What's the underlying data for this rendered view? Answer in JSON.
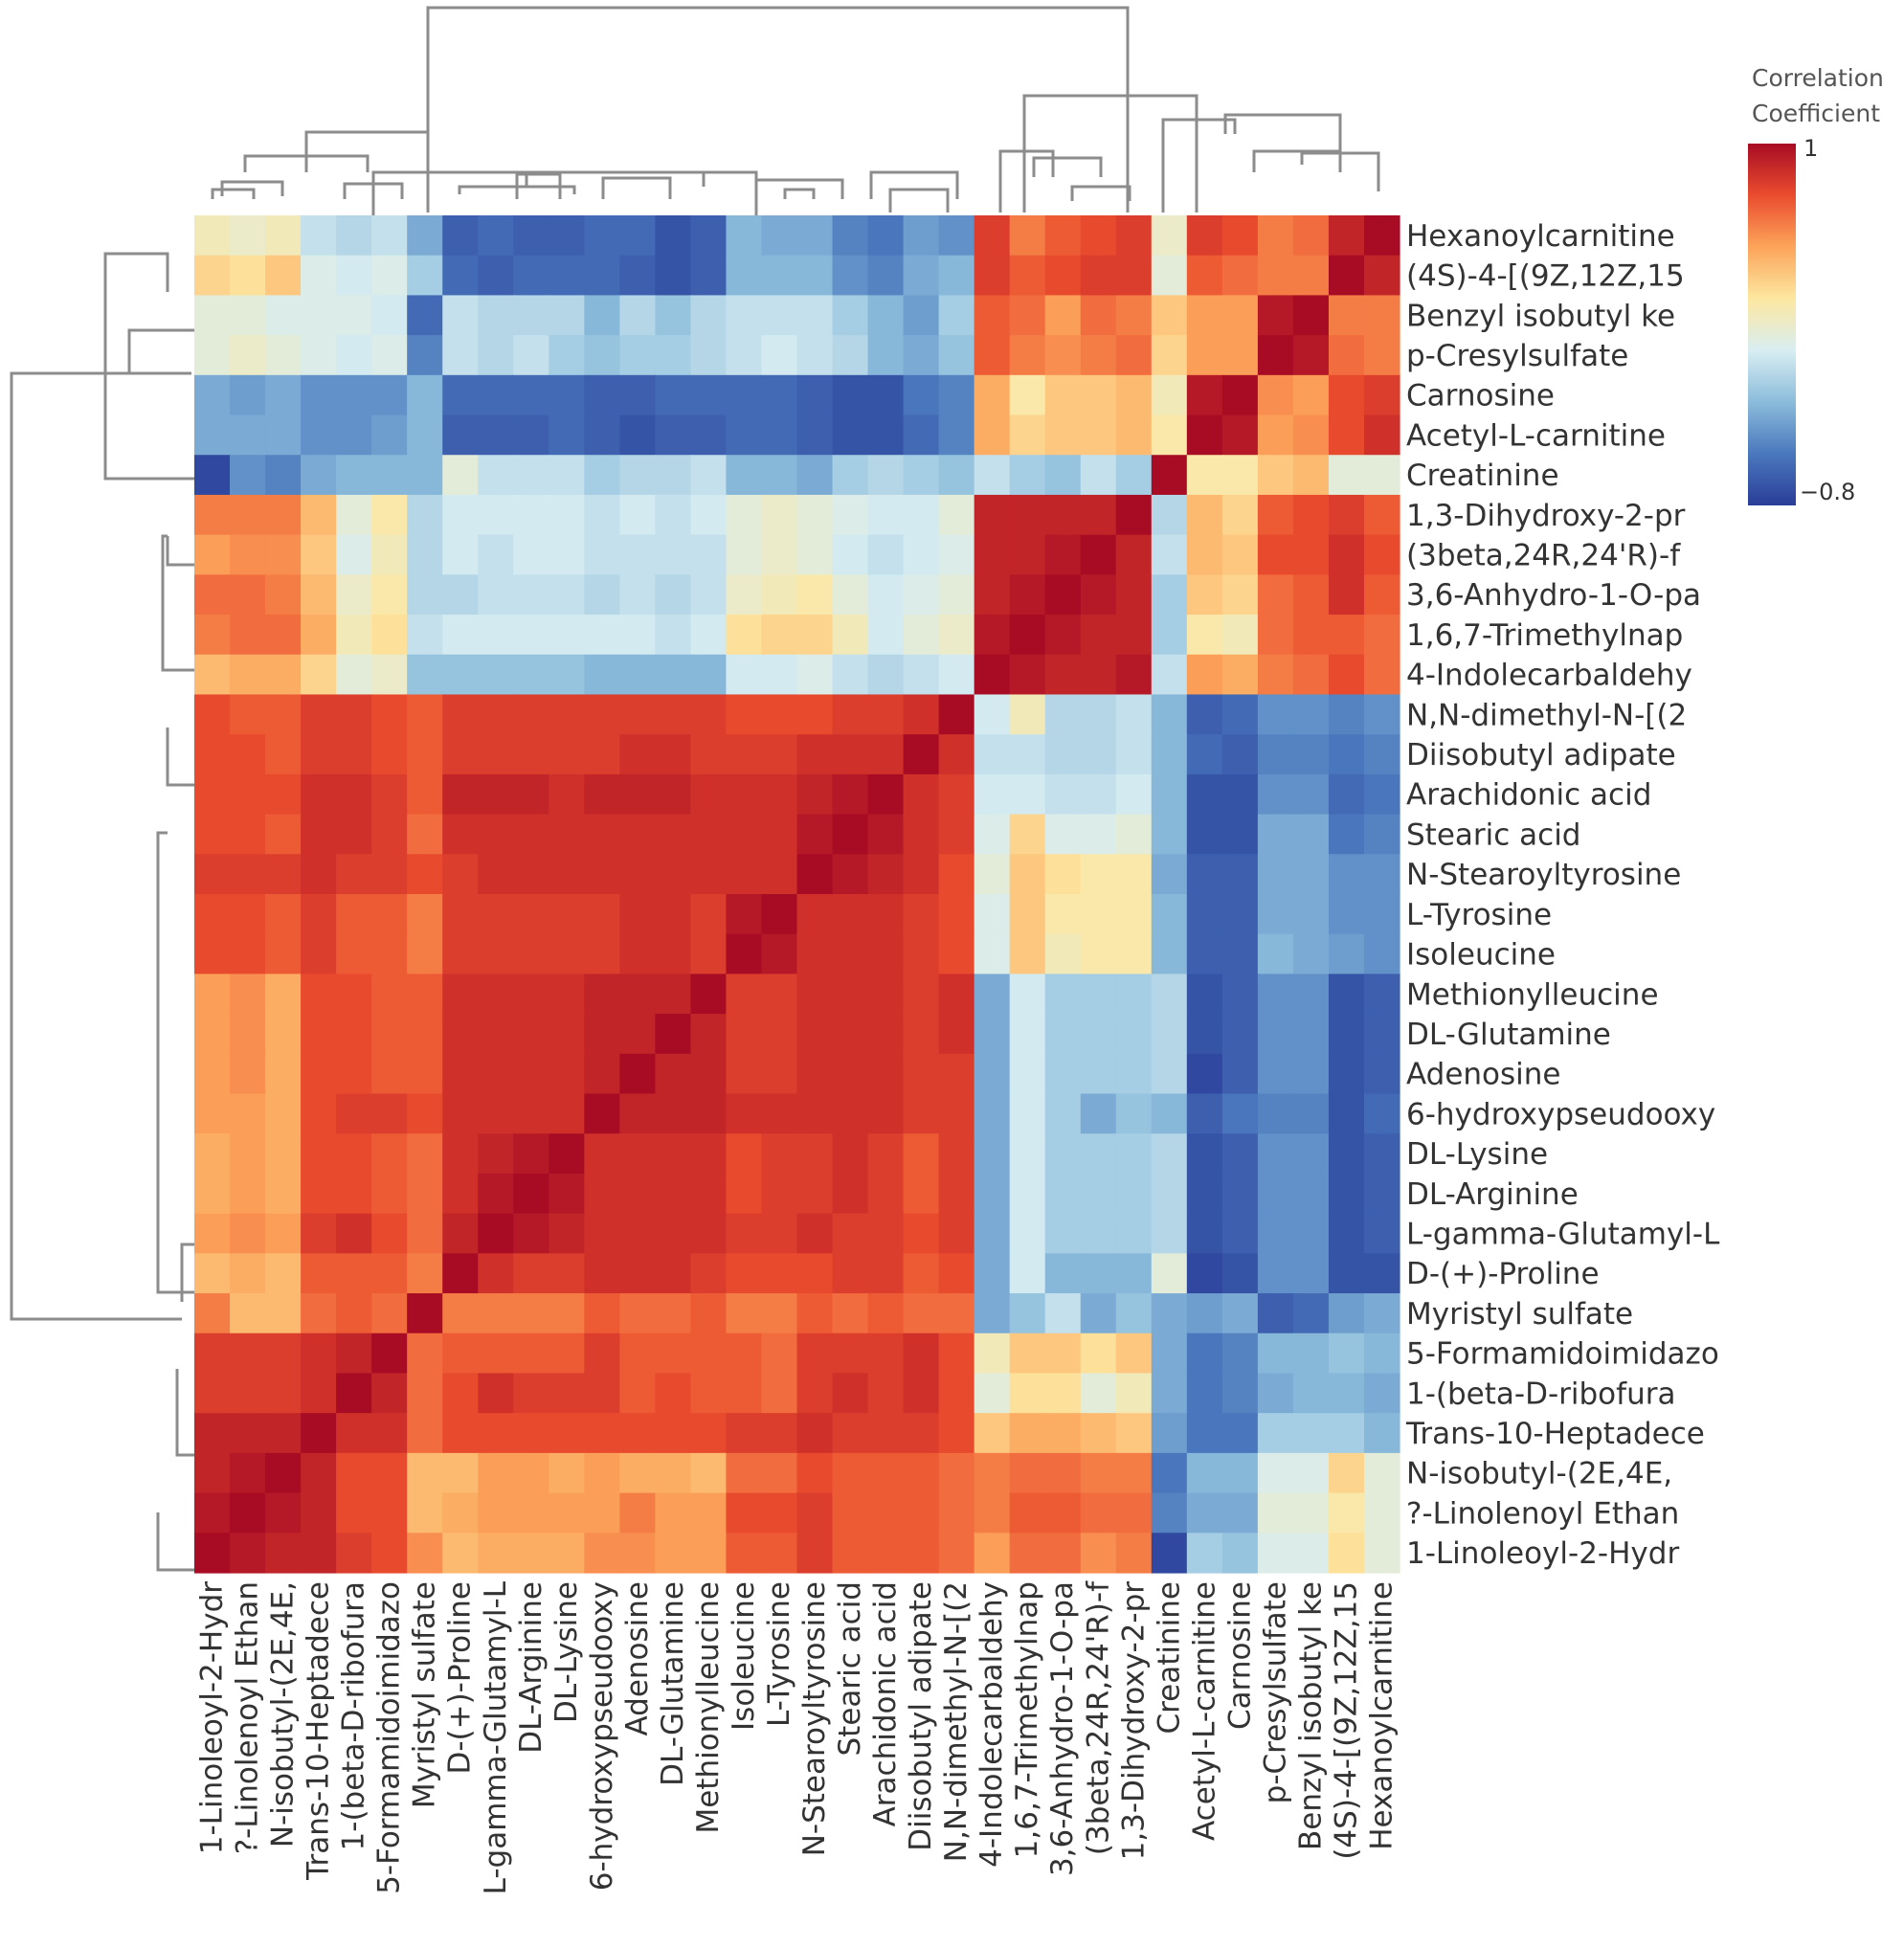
{
  "chart_data": {
    "type": "heatmap",
    "title": "",
    "colorbar": {
      "title_line1": "Correlation",
      "title_line2": "Coefficient",
      "max_label": "1",
      "min_label": "−0.8",
      "range": [
        -0.8,
        1
      ],
      "colors": [
        "#2a3d98",
        "#4a78bd",
        "#8bbcdb",
        "#d8eef2",
        "#fde7a0",
        "#fca45a",
        "#ea4c2e",
        "#a80c24"
      ]
    },
    "row_labels": [
      "Hexanoylcarnitine",
      "(4S)-4-[(9Z,12Z,15",
      "Benzyl isobutyl ke",
      "p-Cresylsulfate",
      "Carnosine",
      "Acetyl-L-carnitine",
      "Creatinine",
      "1,3-Dihydroxy-2-pr",
      "(3beta,24R,24'R)-f",
      "3,6-Anhydro-1-O-pa",
      "1,6,7-Trimethylnap",
      "4-Indolecarbaldehy",
      "N,N-dimethyl-N-[(2",
      "Diisobutyl adipate",
      "Arachidonic acid",
      "Stearic acid",
      "N-Stearoyltyrosine",
      "L-Tyrosine",
      "Isoleucine",
      "Methionylleucine",
      "DL-Glutamine",
      "Adenosine",
      "6-hydroxypseudooxy",
      "DL-Lysine",
      "DL-Arginine",
      "L-gamma-Glutamyl-L",
      "D-(+)-Proline",
      "Myristyl sulfate",
      "5-Formamidoimidazo",
      "1-(beta-D-ribofura",
      "Trans-10-Heptadece",
      "N-isobutyl-(2E,4E,",
      "?-Linolenoyl Ethan",
      "1-Linoleoyl-2-Hydr"
    ],
    "col_labels": [
      "1-Linoleoyl-2-Hydr",
      "?-Linolenoyl Ethan",
      "N-isobutyl-(2E,4E,",
      "Trans-10-Heptadece",
      "1-(beta-D-ribofura",
      "5-Formamidoimidazo",
      "Myristyl sulfate",
      "D-(+)-Proline",
      "L-gamma-Glutamyl-L",
      "DL-Arginine",
      "DL-Lysine",
      "6-hydroxypseudooxy",
      "Adenosine",
      "DL-Glutamine",
      "Methionylleucine",
      "Isoleucine",
      "L-Tyrosine",
      "N-Stearoyltyrosine",
      "Stearic acid",
      "Arachidonic acid",
      "Diisobutyl adipate",
      "N,N-dimethyl-N-[(2",
      "4-Indolecarbaldehy",
      "1,6,7-Trimethylnap",
      "3,6-Anhydro-1-O-pa",
      "(3beta,24R,24'R)-f",
      "1,3-Dihydroxy-2-pr",
      "Creatinine",
      "Acetyl-L-carnitine",
      "Carnosine",
      "p-Cresylsulfate",
      "Benzyl isobutyl ke",
      "(4S)-4-[(9Z,12Z,15",
      "Hexanoylcarnitine"
    ],
    "values": [
      [
        0.15,
        0.1,
        0.15,
        -0.1,
        -0.15,
        -0.1,
        -0.35,
        -0.65,
        -0.6,
        -0.65,
        -0.65,
        -0.6,
        -0.6,
        -0.7,
        -0.65,
        -0.3,
        -0.35,
        -0.35,
        -0.5,
        -0.55,
        -0.4,
        -0.45,
        0.8,
        0.6,
        0.7,
        0.75,
        0.8,
        0.1,
        0.8,
        0.75,
        0.6,
        0.65,
        0.9,
        1
      ],
      [
        0.3,
        0.25,
        0.35,
        0,
        -0.05,
        0,
        -0.2,
        -0.6,
        -0.65,
        -0.6,
        -0.6,
        -0.6,
        -0.65,
        -0.7,
        -0.65,
        -0.3,
        -0.3,
        -0.3,
        -0.45,
        -0.5,
        -0.35,
        -0.3,
        0.8,
        0.7,
        0.75,
        0.8,
        0.8,
        0.05,
        0.7,
        0.65,
        0.6,
        0.6,
        1,
        0.9
      ],
      [
        0.05,
        0.05,
        0,
        0,
        0,
        -0.05,
        -0.6,
        -0.1,
        -0.15,
        -0.15,
        -0.15,
        -0.3,
        -0.15,
        -0.25,
        -0.15,
        -0.1,
        -0.1,
        -0.1,
        -0.2,
        -0.3,
        -0.4,
        -0.2,
        0.7,
        0.65,
        0.5,
        0.65,
        0.6,
        0.35,
        0.5,
        0.5,
        0.95,
        1,
        0.6,
        0.6
      ],
      [
        0.05,
        0.1,
        0.05,
        0,
        -0.05,
        0,
        -0.5,
        -0.1,
        -0.15,
        -0.1,
        -0.2,
        -0.25,
        -0.2,
        -0.2,
        -0.15,
        -0.1,
        -0.05,
        -0.1,
        -0.15,
        -0.3,
        -0.35,
        -0.25,
        0.7,
        0.6,
        0.55,
        0.6,
        0.65,
        0.3,
        0.5,
        0.5,
        1,
        0.95,
        0.65,
        0.6
      ],
      [
        -0.35,
        -0.4,
        -0.35,
        -0.45,
        -0.45,
        -0.45,
        -0.3,
        -0.6,
        -0.6,
        -0.6,
        -0.6,
        -0.65,
        -0.65,
        -0.6,
        -0.6,
        -0.6,
        -0.6,
        -0.65,
        -0.7,
        -0.7,
        -0.55,
        -0.5,
        0.45,
        0.2,
        0.35,
        0.35,
        0.4,
        0.15,
        0.95,
        1,
        0.55,
        0.5,
        0.75,
        0.8
      ],
      [
        -0.35,
        -0.35,
        -0.35,
        -0.45,
        -0.45,
        -0.4,
        -0.3,
        -0.65,
        -0.65,
        -0.65,
        -0.6,
        -0.65,
        -0.7,
        -0.65,
        -0.65,
        -0.6,
        -0.6,
        -0.65,
        -0.7,
        -0.7,
        -0.6,
        -0.5,
        0.45,
        0.3,
        0.35,
        0.35,
        0.4,
        0.2,
        1,
        0.95,
        0.5,
        0.55,
        0.75,
        0.85
      ],
      [
        -0.75,
        -0.45,
        -0.5,
        -0.35,
        -0.3,
        -0.3,
        -0.3,
        0.05,
        -0.1,
        -0.1,
        -0.1,
        -0.2,
        -0.15,
        -0.15,
        -0.1,
        -0.3,
        -0.3,
        -0.35,
        -0.2,
        -0.15,
        -0.2,
        -0.25,
        -0.1,
        -0.2,
        -0.25,
        -0.1,
        -0.2,
        1,
        0.2,
        0.2,
        0.35,
        0.4,
        0.05,
        0.05
      ],
      [
        0.6,
        0.6,
        0.6,
        0.4,
        0.05,
        0.2,
        -0.15,
        -0.05,
        -0.05,
        -0.05,
        -0.05,
        -0.1,
        -0.05,
        -0.1,
        -0.05,
        0.05,
        0.1,
        0.05,
        0.0,
        -0.05,
        -0.05,
        0.05,
        0.9,
        0.9,
        0.9,
        0.9,
        1,
        -0.15,
        0.4,
        0.3,
        0.7,
        0.75,
        0.8,
        0.7
      ],
      [
        0.5,
        0.55,
        0.55,
        0.35,
        0.0,
        0.15,
        -0.15,
        -0.05,
        -0.1,
        -0.05,
        -0.05,
        -0.1,
        -0.1,
        -0.1,
        -0.1,
        0.05,
        0.1,
        0.05,
        -0.05,
        -0.1,
        -0.05,
        0.0,
        0.9,
        0.9,
        0.95,
        1,
        0.9,
        -0.1,
        0.4,
        0.35,
        0.75,
        0.75,
        0.85,
        0.75
      ],
      [
        0.65,
        0.65,
        0.6,
        0.4,
        0.1,
        0.2,
        -0.15,
        -0.15,
        -0.1,
        -0.1,
        -0.1,
        -0.15,
        -0.1,
        -0.15,
        -0.1,
        0.1,
        0.15,
        0.2,
        0.05,
        -0.05,
        0.0,
        0.05,
        0.9,
        0.95,
        1,
        0.95,
        0.9,
        -0.2,
        0.35,
        0.3,
        0.65,
        0.7,
        0.85,
        0.7
      ],
      [
        0.6,
        0.65,
        0.65,
        0.45,
        0.15,
        0.25,
        -0.1,
        -0.05,
        -0.05,
        -0.05,
        -0.05,
        -0.05,
        -0.05,
        -0.1,
        -0.05,
        0.25,
        0.3,
        0.3,
        0.15,
        -0.05,
        0.05,
        0.1,
        0.95,
        1,
        0.95,
        0.9,
        0.9,
        -0.2,
        0.2,
        0.15,
        0.65,
        0.7,
        0.7,
        0.65
      ],
      [
        0.4,
        0.45,
        0.45,
        0.3,
        0.05,
        0.1,
        -0.25,
        -0.25,
        -0.25,
        -0.25,
        -0.25,
        -0.3,
        -0.3,
        -0.3,
        -0.3,
        -0.05,
        -0.05,
        0.0,
        -0.1,
        -0.15,
        -0.1,
        -0.05,
        1,
        0.95,
        0.9,
        0.9,
        0.95,
        -0.1,
        0.5,
        0.45,
        0.6,
        0.65,
        0.75,
        0.65
      ],
      [
        0.75,
        0.7,
        0.7,
        0.8,
        0.8,
        0.75,
        0.7,
        0.8,
        0.8,
        0.8,
        0.8,
        0.8,
        0.8,
        0.8,
        0.8,
        0.75,
        0.75,
        0.75,
        0.8,
        0.8,
        0.85,
        1,
        -0.05,
        0.15,
        -0.15,
        -0.15,
        -0.1,
        -0.3,
        -0.65,
        -0.6,
        -0.45,
        -0.45,
        -0.5,
        -0.45
      ],
      [
        0.75,
        0.75,
        0.7,
        0.8,
        0.8,
        0.75,
        0.7,
        0.8,
        0.8,
        0.8,
        0.8,
        0.8,
        0.85,
        0.85,
        0.8,
        0.8,
        0.8,
        0.85,
        0.85,
        0.85,
        1,
        0.85,
        -0.1,
        -0.1,
        -0.15,
        -0.15,
        -0.1,
        -0.3,
        -0.6,
        -0.65,
        -0.5,
        -0.5,
        -0.55,
        -0.5
      ],
      [
        0.75,
        0.75,
        0.75,
        0.85,
        0.85,
        0.8,
        0.7,
        0.9,
        0.9,
        0.9,
        0.85,
        0.9,
        0.9,
        0.9,
        0.85,
        0.85,
        0.85,
        0.9,
        0.95,
        1,
        0.85,
        0.8,
        -0.05,
        -0.05,
        -0.1,
        -0.1,
        -0.05,
        -0.3,
        -0.7,
        -0.7,
        -0.45,
        -0.45,
        -0.6,
        -0.55
      ],
      [
        0.75,
        0.75,
        0.7,
        0.85,
        0.85,
        0.8,
        0.65,
        0.85,
        0.85,
        0.85,
        0.85,
        0.85,
        0.85,
        0.85,
        0.85,
        0.85,
        0.85,
        0.95,
        1,
        0.95,
        0.85,
        0.8,
        0.0,
        0.3,
        0.0,
        0.0,
        0.05,
        -0.3,
        -0.7,
        -0.7,
        -0.35,
        -0.35,
        -0.55,
        -0.5
      ],
      [
        0.8,
        0.8,
        0.8,
        0.85,
        0.8,
        0.8,
        0.75,
        0.8,
        0.85,
        0.85,
        0.85,
        0.85,
        0.85,
        0.85,
        0.85,
        0.85,
        0.85,
        1,
        0.95,
        0.9,
        0.85,
        0.75,
        0.05,
        0.35,
        0.25,
        0.2,
        0.2,
        -0.35,
        -0.65,
        -0.65,
        -0.35,
        -0.35,
        -0.45,
        -0.45
      ],
      [
        0.75,
        0.75,
        0.7,
        0.8,
        0.7,
        0.7,
        0.6,
        0.8,
        0.8,
        0.8,
        0.8,
        0.8,
        0.85,
        0.85,
        0.8,
        0.95,
        1,
        0.85,
        0.85,
        0.85,
        0.8,
        0.75,
        0.0,
        0.35,
        0.2,
        0.2,
        0.2,
        -0.3,
        -0.65,
        -0.65,
        -0.35,
        -0.35,
        -0.45,
        -0.45
      ],
      [
        0.75,
        0.75,
        0.7,
        0.8,
        0.7,
        0.7,
        0.6,
        0.8,
        0.8,
        0.8,
        0.8,
        0.8,
        0.85,
        0.85,
        0.8,
        1,
        0.95,
        0.85,
        0.85,
        0.85,
        0.8,
        0.75,
        0.0,
        0.35,
        0.15,
        0.2,
        0.2,
        -0.3,
        -0.65,
        -0.65,
        -0.3,
        -0.35,
        -0.4,
        -0.45
      ],
      [
        0.5,
        0.55,
        0.45,
        0.75,
        0.75,
        0.7,
        0.7,
        0.85,
        0.85,
        0.85,
        0.85,
        0.9,
        0.9,
        0.9,
        1,
        0.8,
        0.8,
        0.85,
        0.85,
        0.85,
        0.8,
        0.85,
        -0.35,
        -0.05,
        -0.2,
        -0.2,
        -0.2,
        -0.15,
        -0.7,
        -0.65,
        -0.45,
        -0.45,
        -0.7,
        -0.65
      ],
      [
        0.5,
        0.55,
        0.45,
        0.75,
        0.75,
        0.7,
        0.7,
        0.85,
        0.85,
        0.85,
        0.85,
        0.9,
        0.9,
        1,
        0.9,
        0.8,
        0.8,
        0.85,
        0.85,
        0.85,
        0.8,
        0.85,
        -0.35,
        -0.05,
        -0.2,
        -0.2,
        -0.2,
        -0.15,
        -0.7,
        -0.65,
        -0.45,
        -0.45,
        -0.7,
        -0.65
      ],
      [
        0.5,
        0.55,
        0.45,
        0.75,
        0.75,
        0.7,
        0.7,
        0.85,
        0.85,
        0.85,
        0.85,
        0.9,
        1,
        0.9,
        0.9,
        0.8,
        0.8,
        0.85,
        0.85,
        0.85,
        0.8,
        0.8,
        -0.35,
        -0.05,
        -0.2,
        -0.2,
        -0.2,
        -0.15,
        -0.75,
        -0.65,
        -0.45,
        -0.45,
        -0.7,
        -0.65
      ],
      [
        0.5,
        0.5,
        0.45,
        0.75,
        0.8,
        0.8,
        0.75,
        0.85,
        0.85,
        0.85,
        0.85,
        1,
        0.9,
        0.9,
        0.9,
        0.85,
        0.85,
        0.85,
        0.85,
        0.85,
        0.8,
        0.8,
        -0.35,
        -0.05,
        -0.2,
        -0.35,
        -0.25,
        -0.3,
        -0.65,
        -0.55,
        -0.5,
        -0.5,
        -0.7,
        -0.6
      ],
      [
        0.45,
        0.5,
        0.45,
        0.75,
        0.75,
        0.7,
        0.65,
        0.85,
        0.9,
        0.95,
        1,
        0.85,
        0.85,
        0.85,
        0.85,
        0.75,
        0.8,
        0.8,
        0.85,
        0.8,
        0.7,
        0.8,
        -0.35,
        -0.05,
        -0.2,
        -0.2,
        -0.2,
        -0.15,
        -0.7,
        -0.65,
        -0.45,
        -0.45,
        -0.7,
        -0.65
      ],
      [
        0.45,
        0.5,
        0.45,
        0.75,
        0.75,
        0.7,
        0.65,
        0.85,
        0.95,
        1,
        0.95,
        0.85,
        0.85,
        0.85,
        0.85,
        0.75,
        0.8,
        0.8,
        0.85,
        0.8,
        0.7,
        0.8,
        -0.35,
        -0.05,
        -0.2,
        -0.2,
        -0.2,
        -0.15,
        -0.7,
        -0.65,
        -0.45,
        -0.45,
        -0.7,
        -0.65
      ],
      [
        0.5,
        0.55,
        0.5,
        0.8,
        0.85,
        0.75,
        0.65,
        0.9,
        1,
        0.95,
        0.9,
        0.85,
        0.85,
        0.85,
        0.85,
        0.8,
        0.8,
        0.85,
        0.8,
        0.8,
        0.75,
        0.8,
        -0.35,
        -0.05,
        -0.2,
        -0.2,
        -0.2,
        -0.15,
        -0.7,
        -0.65,
        -0.45,
        -0.45,
        -0.7,
        -0.65
      ],
      [
        0.4,
        0.45,
        0.4,
        0.7,
        0.7,
        0.7,
        0.6,
        1,
        0.85,
        0.8,
        0.8,
        0.85,
        0.85,
        0.85,
        0.8,
        0.75,
        0.75,
        0.75,
        0.8,
        0.8,
        0.7,
        0.75,
        -0.35,
        -0.05,
        -0.3,
        -0.3,
        -0.3,
        0.05,
        -0.75,
        -0.7,
        -0.45,
        -0.45,
        -0.7,
        -0.7
      ],
      [
        0.6,
        0.4,
        0.4,
        0.65,
        0.7,
        0.65,
        1,
        0.6,
        0.6,
        0.6,
        0.6,
        0.7,
        0.65,
        0.65,
        0.7,
        0.6,
        0.6,
        0.7,
        0.65,
        0.7,
        0.65,
        0.65,
        -0.35,
        -0.25,
        -0.1,
        -0.35,
        -0.25,
        -0.35,
        -0.4,
        -0.35,
        -0.65,
        -0.6,
        -0.4,
        -0.35
      ],
      [
        0.8,
        0.8,
        0.8,
        0.85,
        0.9,
        1,
        0.65,
        0.7,
        0.7,
        0.7,
        0.7,
        0.8,
        0.7,
        0.7,
        0.7,
        0.7,
        0.65,
        0.8,
        0.8,
        0.8,
        0.85,
        0.75,
        0.15,
        0.35,
        0.35,
        0.25,
        0.35,
        -0.35,
        -0.55,
        -0.5,
        -0.3,
        -0.3,
        -0.25,
        -0.3
      ],
      [
        0.8,
        0.8,
        0.8,
        0.85,
        1,
        0.9,
        0.65,
        0.75,
        0.85,
        0.8,
        0.8,
        0.8,
        0.7,
        0.75,
        0.7,
        0.7,
        0.65,
        0.8,
        0.85,
        0.8,
        0.85,
        0.75,
        0.05,
        0.25,
        0.25,
        0.05,
        0.15,
        -0.35,
        -0.55,
        -0.5,
        -0.35,
        -0.3,
        -0.3,
        -0.35
      ],
      [
        0.9,
        0.9,
        0.9,
        1,
        0.85,
        0.85,
        0.65,
        0.75,
        0.75,
        0.75,
        0.75,
        0.75,
        0.75,
        0.75,
        0.75,
        0.8,
        0.8,
        0.85,
        0.8,
        0.8,
        0.8,
        0.75,
        0.35,
        0.45,
        0.45,
        0.4,
        0.35,
        -0.4,
        -0.55,
        -0.55,
        -0.2,
        -0.2,
        -0.2,
        -0.3
      ],
      [
        0.9,
        0.95,
        1,
        0.9,
        0.75,
        0.75,
        0.4,
        0.4,
        0.5,
        0.5,
        0.45,
        0.5,
        0.45,
        0.45,
        0.4,
        0.65,
        0.65,
        0.75,
        0.7,
        0.7,
        0.7,
        0.65,
        0.6,
        0.65,
        0.65,
        0.6,
        0.6,
        -0.55,
        -0.3,
        -0.3,
        0.0,
        0.0,
        0.3,
        0.05
      ],
      [
        0.95,
        1,
        0.95,
        0.9,
        0.75,
        0.75,
        0.4,
        0.45,
        0.5,
        0.5,
        0.5,
        0.5,
        0.6,
        0.5,
        0.5,
        0.75,
        0.75,
        0.8,
        0.7,
        0.7,
        0.7,
        0.65,
        0.6,
        0.7,
        0.7,
        0.65,
        0.65,
        -0.5,
        -0.35,
        -0.35,
        0.05,
        0.05,
        0.2,
        0.05
      ],
      [
        1,
        0.95,
        0.9,
        0.9,
        0.8,
        0.75,
        0.55,
        0.4,
        0.45,
        0.45,
        0.45,
        0.55,
        0.55,
        0.5,
        0.5,
        0.7,
        0.7,
        0.8,
        0.7,
        0.7,
        0.7,
        0.65,
        0.5,
        0.65,
        0.65,
        0.55,
        0.6,
        -0.75,
        -0.2,
        -0.25,
        0.0,
        0.0,
        0.25,
        0.05
      ]
    ]
  }
}
